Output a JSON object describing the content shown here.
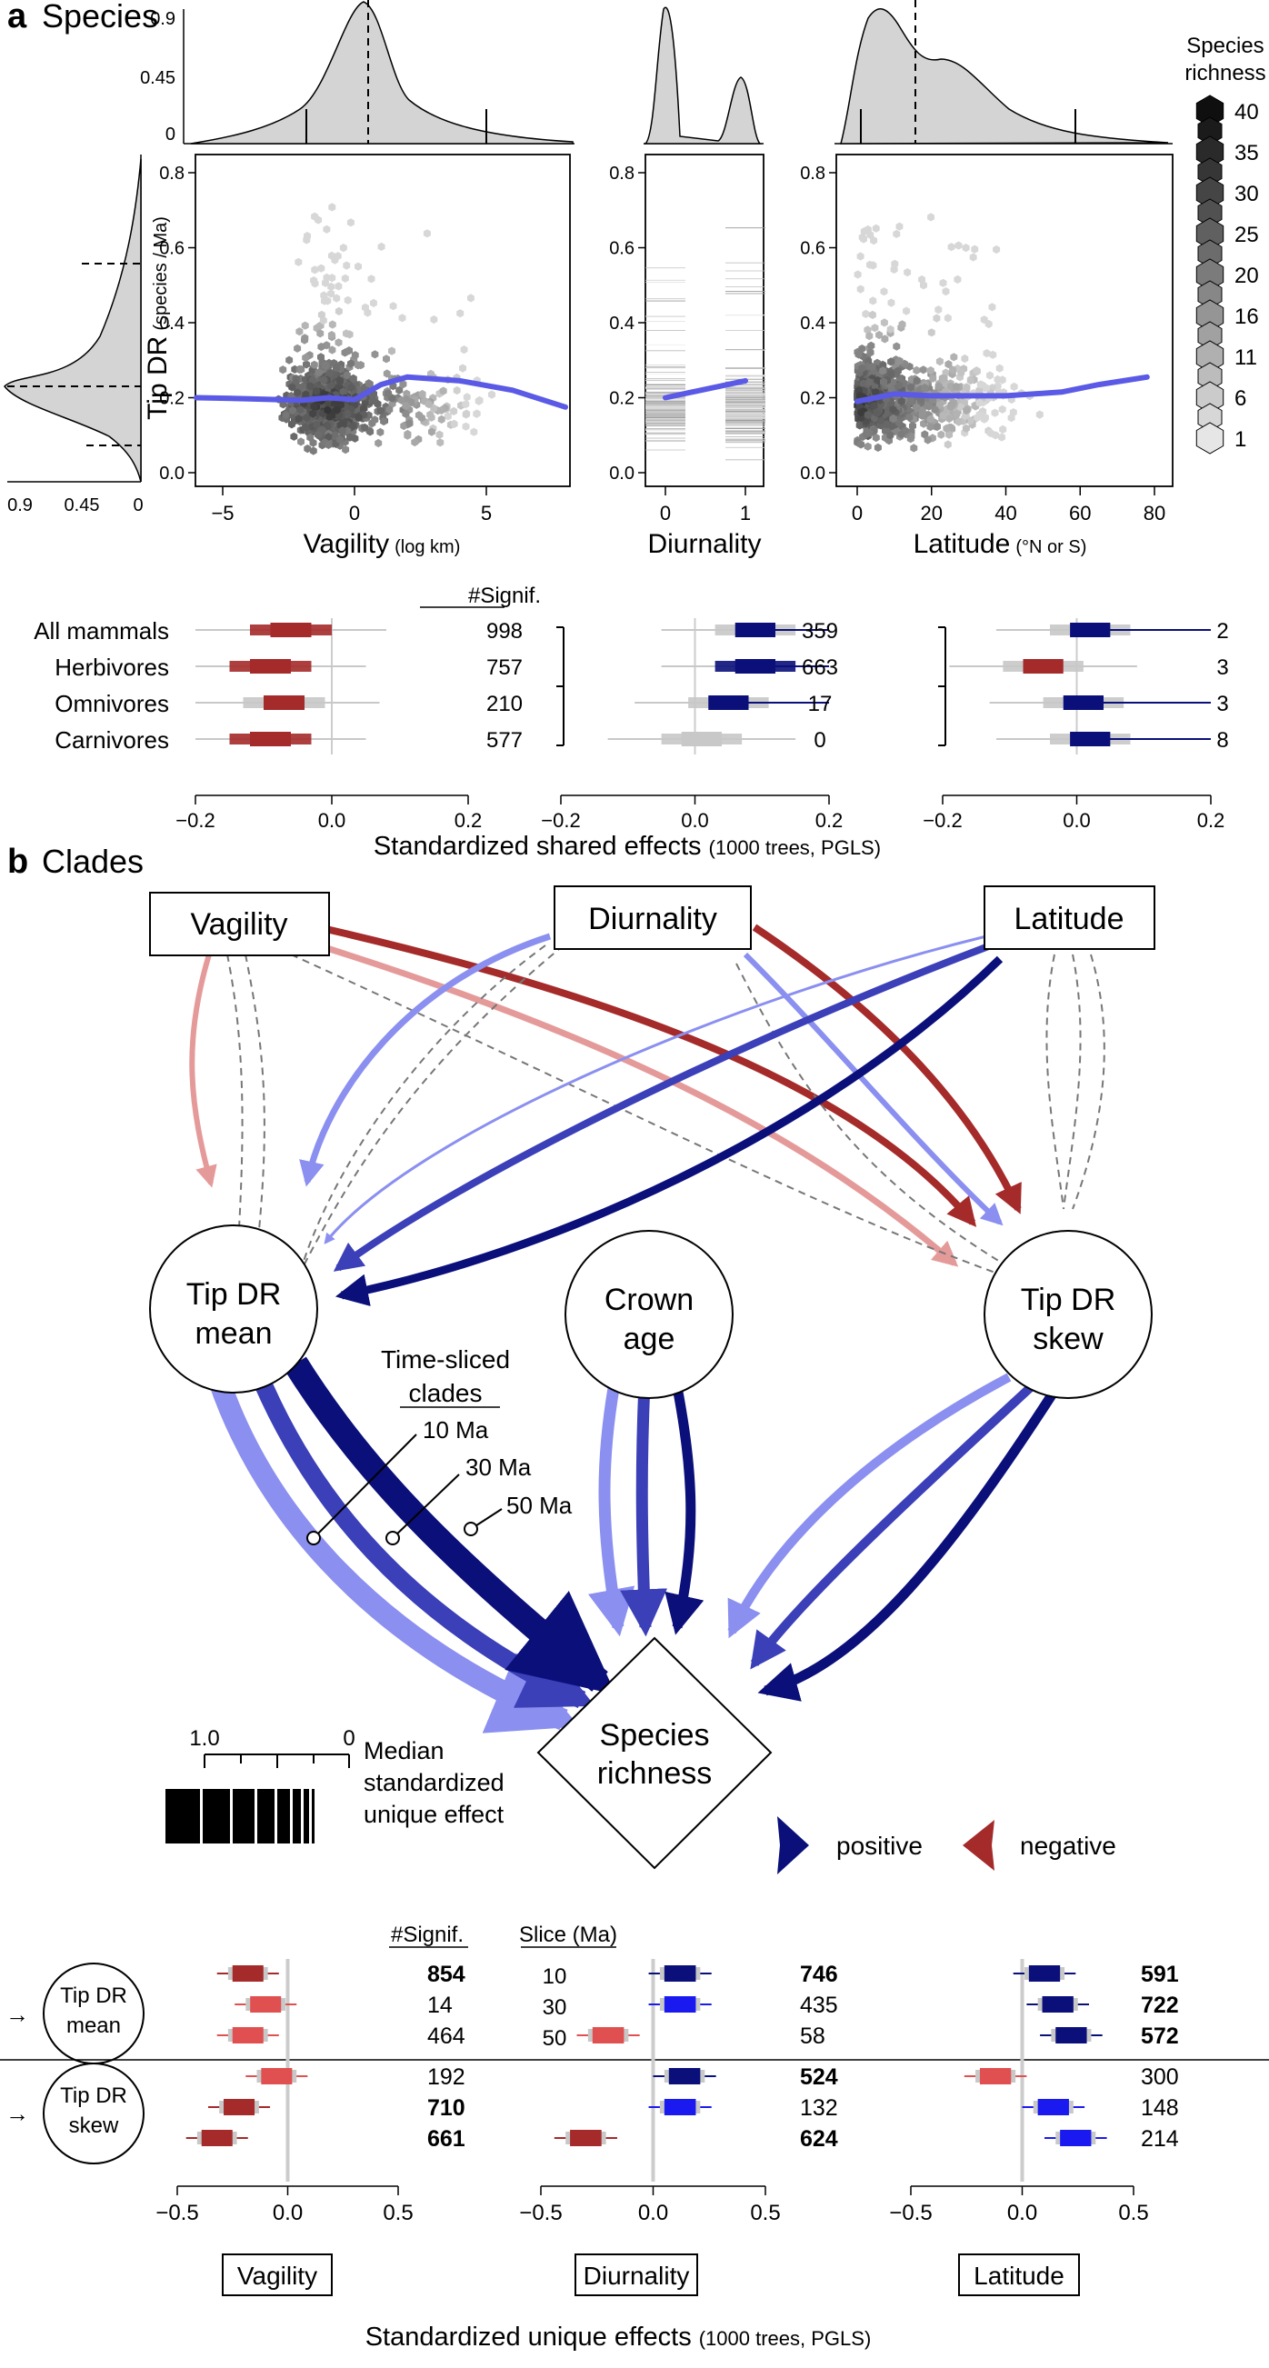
{
  "panel_a": {
    "letter": "a",
    "title": "Species",
    "ylabel": "Tip DR",
    "ylabel_units": "(species / Ma)",
    "x_labels": [
      {
        "main": "Vagility",
        "units": "(log km)"
      },
      {
        "main": "Diurnality",
        "units": ""
      },
      {
        "main": "Latitude",
        "units": "(°N or S)"
      }
    ],
    "density_ticks": [
      "0.9",
      "0.45",
      "0"
    ],
    "legend": {
      "title_line1": "Species",
      "title_line2": "richness",
      "values": [
        "40",
        "35",
        "30",
        "25",
        "20",
        "16",
        "11",
        "6",
        "1"
      ]
    },
    "signif_header": "#Signif.",
    "groups": [
      "All mammals",
      "Herbivores",
      "Omnivores",
      "Carnivores"
    ],
    "signif_vagility": [
      "998",
      "757",
      "210",
      "577"
    ],
    "signif_diurnality": [
      "359",
      "663",
      "17",
      "0"
    ],
    "signif_latitude": [
      "2",
      "3",
      "3",
      "8"
    ],
    "effects_axis_title": "Standardized shared effects",
    "effects_axis_units": "(1000 trees, PGLS)"
  },
  "panel_b": {
    "letter": "b",
    "title": "Clades",
    "predictors": [
      "Vagility",
      "Diurnality",
      "Latitude"
    ],
    "node_tipdr_mean": [
      "Tip DR",
      "mean"
    ],
    "node_crown_age": [
      "Crown",
      "age"
    ],
    "node_tipdr_skew": [
      "Tip DR",
      "skew"
    ],
    "node_richness": [
      "Species",
      "richness"
    ],
    "time_sliced": [
      "Time-sliced",
      "clades"
    ],
    "slices": [
      "10 Ma",
      "30 Ma",
      "50 Ma"
    ],
    "scale_ticks": [
      "1.0",
      "0"
    ],
    "scale_caption": [
      "Median",
      "standardized",
      "unique effect"
    ],
    "legend_positive": "positive",
    "legend_negative": "negative",
    "signif_header": "#Signif.",
    "slice_header": "Slice (Ma)",
    "slice_values": [
      "10",
      "30",
      "50"
    ],
    "row_mean": [
      "Tip DR",
      "mean"
    ],
    "row_skew": [
      "Tip DR",
      "skew"
    ],
    "signif_vagility": [
      "854",
      "14",
      "464",
      "192",
      "710",
      "661"
    ],
    "signif_diurnality": [
      "746",
      "435",
      "58",
      "524",
      "132",
      "624"
    ],
    "signif_latitude": [
      "591",
      "722",
      "572",
      "300",
      "148",
      "214"
    ],
    "effects_axis_title": "Standardized unique effects",
    "effects_axis_units": "(1000 trees, PGLS)"
  },
  "colors": {
    "pos_dark": "#0a0f7a",
    "pos_mid": "#3b3fb8",
    "pos_light": "#8a8ff0",
    "neg_dark": "#a52a2a",
    "neg_light": "#e59a9a",
    "trend": "#5a5ae6",
    "gray": "#c8c8c8"
  },
  "chart_data": [
    {
      "type": "scatter",
      "subtype": "hexbin",
      "xlabel": "Vagility (log km)",
      "ylabel": "Tip DR (species / Ma)",
      "xlim": [
        -6,
        8
      ],
      "ylim": [
        0,
        0.85
      ],
      "x_ticks": [
        -5,
        0,
        5
      ],
      "y_ticks": [
        0.0,
        0.2,
        0.4,
        0.6,
        0.8
      ],
      "trend_x": [
        -6,
        -4,
        -2,
        -1,
        0,
        1,
        2,
        4,
        6,
        8
      ],
      "trend_y": [
        0.2,
        0.197,
        0.193,
        0.2,
        0.195,
        0.235,
        0.255,
        0.245,
        0.22,
        0.175
      ],
      "top_density_ticks": [
        "0.9",
        "0.45",
        "0"
      ]
    },
    {
      "type": "scatter",
      "subtype": "strip",
      "xlabel": "Diurnality",
      "ylim": [
        0,
        0.85
      ],
      "x_ticks": [
        0,
        1
      ],
      "y_ticks": [
        0.0,
        0.2,
        0.4,
        0.6,
        0.8
      ],
      "trend_x": [
        0,
        1
      ],
      "trend_y": [
        0.2,
        0.245
      ]
    },
    {
      "type": "scatter",
      "subtype": "hexbin",
      "xlabel": "Latitude (°N or S)",
      "xlim": [
        -3,
        83
      ],
      "ylim": [
        0,
        0.85
      ],
      "x_ticks": [
        0,
        20,
        40,
        60,
        80
      ],
      "y_ticks": [
        0.0,
        0.2,
        0.4,
        0.6,
        0.8
      ],
      "trend_x": [
        0,
        5,
        10,
        20,
        40,
        55,
        65,
        78
      ],
      "trend_y": [
        0.19,
        0.2,
        0.21,
        0.205,
        0.205,
        0.215,
        0.235,
        0.255
      ]
    },
    {
      "type": "bar",
      "subtype": "boxplot",
      "title": "Standardized shared effects (1000 trees, PGLS)",
      "xlim": [
        -0.2,
        0.2
      ],
      "x_ticks": [
        -0.2,
        0.0,
        0.2
      ],
      "categories": [
        "All mammals",
        "Herbivores",
        "Omnivores",
        "Carnivores"
      ],
      "series": [
        {
          "name": "Vagility",
          "medians": [
            -0.06,
            -0.09,
            -0.07,
            -0.09
          ],
          "signif": [
            998,
            757,
            210,
            577
          ]
        },
        {
          "name": "Diurnality",
          "medians": [
            0.09,
            0.09,
            0.05,
            0.01
          ],
          "signif": [
            359,
            663,
            17,
            0
          ]
        },
        {
          "name": "Latitude",
          "medians": [
            0.02,
            -0.05,
            0.01,
            0.02
          ],
          "signif": [
            2,
            3,
            3,
            8
          ]
        }
      ]
    },
    {
      "type": "bar",
      "subtype": "boxplot",
      "title": "Standardized unique effects (1000 trees, PGLS)",
      "xlim": [
        -0.5,
        0.5
      ],
      "x_ticks": [
        -0.5,
        0.0,
        0.5
      ],
      "categories": [
        "Tip DR mean 10",
        "Tip DR mean 30",
        "Tip DR mean 50",
        "Tip DR skew 10",
        "Tip DR skew 30",
        "Tip DR skew 50"
      ],
      "series": [
        {
          "name": "Vagility",
          "medians": [
            -0.18,
            -0.1,
            -0.18,
            -0.05,
            -0.22,
            -0.32
          ],
          "signif": [
            854,
            14,
            464,
            192,
            710,
            661
          ]
        },
        {
          "name": "Diurnality",
          "medians": [
            0.12,
            0.12,
            -0.2,
            0.14,
            0.12,
            -0.3
          ],
          "signif": [
            746,
            435,
            58,
            524,
            132,
            624
          ]
        },
        {
          "name": "Latitude",
          "medians": [
            0.1,
            0.16,
            0.22,
            -0.12,
            0.14,
            0.24
          ],
          "signif": [
            591,
            722,
            572,
            300,
            148,
            214
          ]
        }
      ]
    }
  ]
}
